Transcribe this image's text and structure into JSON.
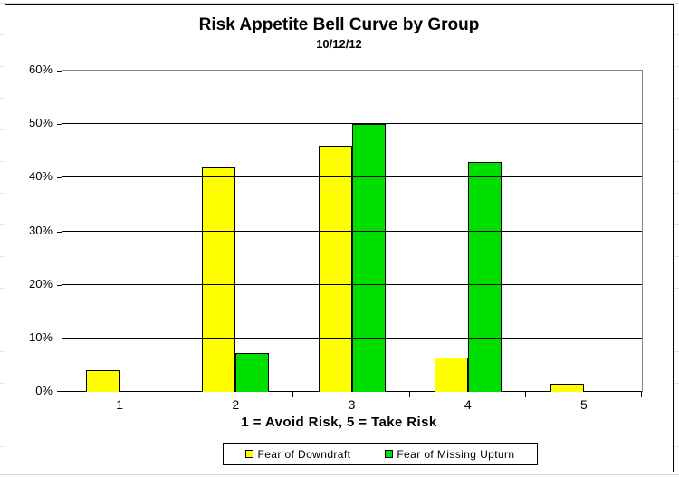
{
  "chart_data": {
    "type": "bar",
    "title": "Risk Appetite Bell Curve by Group",
    "subtitle": "10/12/12",
    "categories": [
      "1",
      "2",
      "3",
      "4",
      "5"
    ],
    "series": [
      {
        "name": "Fear of Downdraft",
        "color": "#FFFF00",
        "values": [
          4,
          42,
          46,
          6.5,
          1.5
        ]
      },
      {
        "name": "Fear of Missing Upturn",
        "color": "#00E000",
        "values": [
          0,
          7.3,
          50,
          43,
          0
        ]
      }
    ],
    "xlabel": "1 = Avoid Risk, 5 = Take Risk",
    "ylabel": "",
    "ylim": [
      0,
      60
    ],
    "ytick_step": 10,
    "ytick_labels": [
      "0%",
      "10%",
      "20%",
      "30%",
      "40%",
      "50%",
      "60%"
    ],
    "grid": true,
    "legend_position": "bottom-center",
    "colors": {
      "plot_border": "#858585",
      "gridline": "#000000",
      "axis": "#000000",
      "chart_border": "#000000"
    }
  }
}
